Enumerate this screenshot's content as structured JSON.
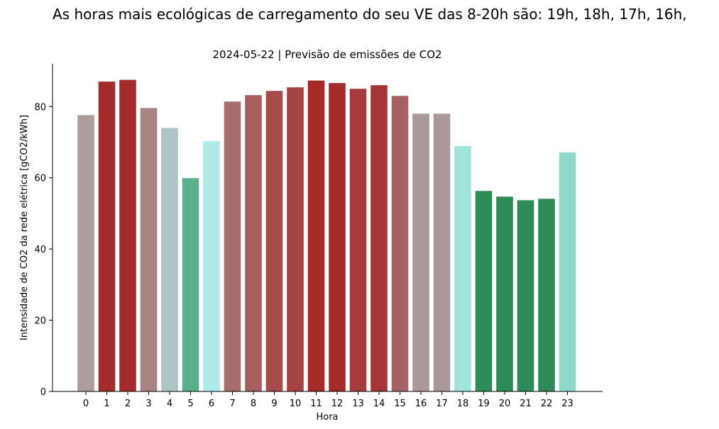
{
  "chart_data": {
    "type": "bar",
    "suptitle": "As horas mais ecológicas de carregamento do seu VE das 8-20h são: 19h, 18h, 17h, 16h,",
    "title": "2024-05-22 | Previsão de emissões de CO2",
    "xlabel": "Hora",
    "ylabel": "Intensidade de CO2 da rede elétrica [gCO2/kWh]",
    "ylim": [
      0,
      92
    ],
    "yticks": [
      0,
      20,
      40,
      60,
      80
    ],
    "categories": [
      "0",
      "1",
      "2",
      "3",
      "4",
      "5",
      "6",
      "7",
      "8",
      "9",
      "10",
      "11",
      "12",
      "13",
      "14",
      "15",
      "16",
      "17",
      "18",
      "19",
      "20",
      "21",
      "22",
      "23"
    ],
    "values": [
      77.6,
      87.0,
      87.5,
      79.6,
      74.0,
      59.9,
      70.3,
      81.4,
      83.2,
      84.4,
      85.4,
      87.3,
      86.6,
      85.0,
      86.0,
      83.0,
      78.0,
      78.0,
      68.9,
      56.3,
      54.7,
      53.7,
      54.1,
      67.1
    ],
    "colors": [
      "#ab9b9b",
      "#a52a2a",
      "#a52a2a",
      "#a98484",
      "#afc5c4",
      "#5ab08b",
      "#afeae8",
      "#a86d6d",
      "#a75e5e",
      "#a64a4a",
      "#a64444",
      "#a52a2a",
      "#a52a2a",
      "#a63b3b",
      "#a63535",
      "#a76262",
      "#ab9898",
      "#ab9898",
      "#a0e4db",
      "#2e8b57",
      "#2e8b57",
      "#2e8b57",
      "#2e8b57",
      "#8fd9cb"
    ],
    "grid": false
  }
}
